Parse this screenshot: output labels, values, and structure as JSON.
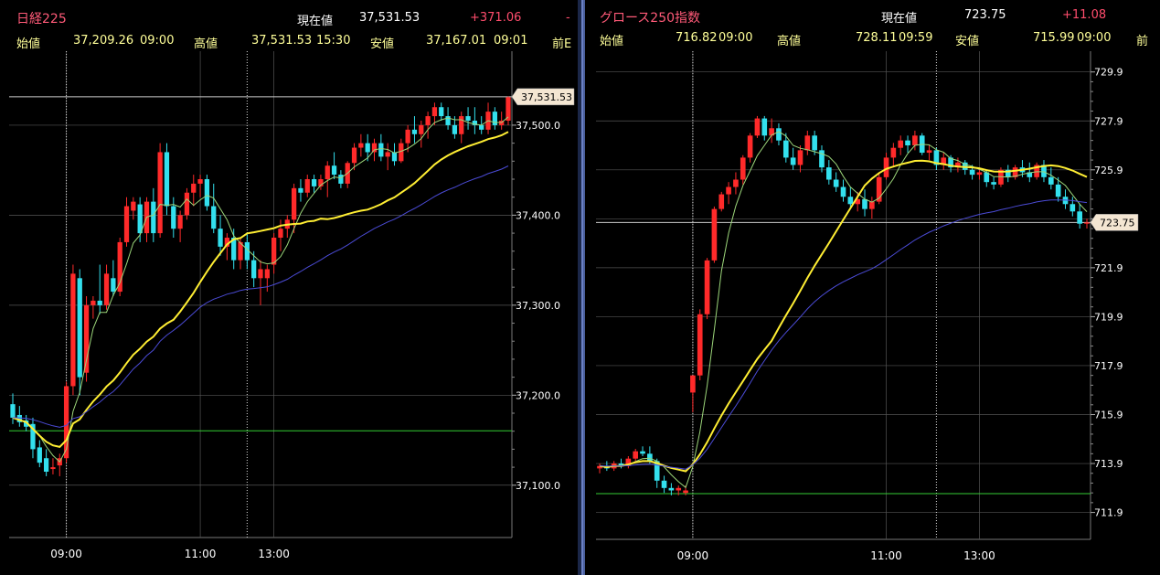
{
  "panels": [
    {
      "id": "nikkei",
      "title": "日経225",
      "current_label": "現在値",
      "current_value": "37,531.53",
      "change": "+371.06",
      "change_marker": "-",
      "open_label": "始値",
      "open_value": "37,209.26",
      "open_time": "09:00",
      "high_label": "高値",
      "high_value": "37,531.53",
      "high_time": "15:30",
      "low_label": "安値",
      "low_value": "37,167.01",
      "low_time": "09:01",
      "prev_label": "前E",
      "price_tag": "37,531.53"
    },
    {
      "id": "growth250",
      "title": "グロース250指数",
      "current_label": "現在値",
      "current_value": "723.75",
      "change": "+11.08",
      "open_label": "始値",
      "open_value": "716.82",
      "open_time": "09:00",
      "high_label": "高値",
      "high_value": "728.11",
      "high_time": "09:59",
      "low_label": "安値",
      "low_value": "715.99",
      "low_time": "09:00",
      "prev_label": "前",
      "price_tag": "723.75"
    }
  ],
  "colors": {
    "up": "#ff2a2a",
    "down": "#33e0ee",
    "ma_fast": "#9cd67a",
    "ma_mid": "#ffee33",
    "ma_slow": "#4b4bd6",
    "prev_close_line": "#33cc33",
    "grid": "#555555"
  },
  "chart_data": [
    {
      "type": "candlestick",
      "name": "日経225",
      "y_ticks": [
        "37,100.0",
        "37,200.0",
        "37,300.0",
        "37,400.0",
        "37,500.0"
      ],
      "y_tick_values": [
        37100,
        37200,
        37300,
        37400,
        37500
      ],
      "ylim": [
        37050,
        37570
      ],
      "x_ticks": [
        "09:00",
        "11:00",
        "13:00"
      ],
      "x_tick_index": [
        8,
        28,
        39
      ],
      "session_markers": [
        8,
        35
      ],
      "prev_close": 37160.5,
      "last_price": 37531.53,
      "candles": [
        [
          37190,
          37202,
          37168,
          37175
        ],
        [
          37178,
          37188,
          37165,
          37170
        ],
        [
          37172,
          37178,
          37160,
          37165
        ],
        [
          37168,
          37175,
          37130,
          37140
        ],
        [
          37142,
          37150,
          37120,
          37125
        ],
        [
          37130,
          37140,
          37110,
          37115
        ],
        [
          37118,
          37130,
          37112,
          37120
        ],
        [
          37122,
          37135,
          37110,
          37130
        ],
        [
          37130,
          37215,
          37125,
          37210
        ],
        [
          37210,
          37345,
          37200,
          37335
        ],
        [
          37330,
          37340,
          37200,
          37220
        ],
        [
          37225,
          37310,
          37215,
          37300
        ],
        [
          37300,
          37310,
          37285,
          37305
        ],
        [
          37305,
          37345,
          37290,
          37300
        ],
        [
          37300,
          37345,
          37295,
          37335
        ],
        [
          37330,
          37350,
          37310,
          37315
        ],
        [
          37315,
          37375,
          37310,
          37370
        ],
        [
          37370,
          37420,
          37365,
          37410
        ],
        [
          37405,
          37420,
          37395,
          37415
        ],
        [
          37412,
          37420,
          37370,
          37380
        ],
        [
          37380,
          37420,
          37370,
          37415
        ],
        [
          37415,
          37430,
          37370,
          37380
        ],
        [
          37380,
          37480,
          37375,
          37470
        ],
        [
          37470,
          37480,
          37400,
          37410
        ],
        [
          37410,
          37420,
          37375,
          37385
        ],
        [
          37385,
          37405,
          37370,
          37400
        ],
        [
          37400,
          37430,
          37395,
          37425
        ],
        [
          37425,
          37445,
          37410,
          37435
        ],
        [
          37435,
          37445,
          37420,
          37440
        ],
        [
          37440,
          37445,
          37405,
          37410
        ],
        [
          37410,
          37435,
          37380,
          37385
        ],
        [
          37385,
          37400,
          37355,
          37365
        ],
        [
          37365,
          37380,
          37350,
          37375
        ],
        [
          37375,
          37385,
          37340,
          37350
        ],
        [
          37350,
          37375,
          37340,
          37370
        ],
        [
          37370,
          37380,
          37340,
          37350
        ],
        [
          37350,
          37360,
          37320,
          37330
        ],
        [
          37330,
          37350,
          37300,
          37340
        ],
        [
          37330,
          37345,
          37315,
          37340
        ],
        [
          37345,
          37380,
          37335,
          37375
        ],
        [
          37375,
          37395,
          37360,
          37385
        ],
        [
          37385,
          37400,
          37375,
          37395
        ],
        [
          37395,
          37435,
          37380,
          37430
        ],
        [
          37430,
          37440,
          37415,
          37425
        ],
        [
          37425,
          37445,
          37420,
          37440
        ],
        [
          37440,
          37445,
          37425,
          37432
        ],
        [
          37432,
          37445,
          37428,
          37440
        ],
        [
          37440,
          37460,
          37420,
          37455
        ],
        [
          37455,
          37470,
          37440,
          37445
        ],
        [
          37445,
          37450,
          37430,
          37435
        ],
        [
          37435,
          37460,
          37430,
          37458
        ],
        [
          37458,
          37480,
          37450,
          37475
        ],
        [
          37475,
          37490,
          37465,
          37480
        ],
        [
          37480,
          37490,
          37460,
          37470
        ],
        [
          37470,
          37485,
          37460,
          37480
        ],
        [
          37480,
          37490,
          37460,
          37465
        ],
        [
          37465,
          37480,
          37450,
          37470
        ],
        [
          37470,
          37480,
          37455,
          37460
        ],
        [
          37460,
          37485,
          37458,
          37480
        ],
        [
          37480,
          37500,
          37470,
          37495
        ],
        [
          37495,
          37510,
          37480,
          37490
        ],
        [
          37490,
          37505,
          37475,
          37500
        ],
        [
          37500,
          37515,
          37485,
          37510
        ],
        [
          37510,
          37525,
          37500,
          37520
        ],
        [
          37520,
          37525,
          37505,
          37510
        ],
        [
          37510,
          37520,
          37495,
          37500
        ],
        [
          37500,
          37510,
          37485,
          37490
        ],
        [
          37490,
          37515,
          37480,
          37510
        ],
        [
          37510,
          37520,
          37495,
          37505
        ],
        [
          37505,
          37520,
          37490,
          37500
        ],
        [
          37500,
          37510,
          37490,
          37495
        ],
        [
          37495,
          37525,
          37490,
          37515
        ],
        [
          37515,
          37520,
          37495,
          37500
        ],
        [
          37500,
          37515,
          37495,
          37505
        ],
        [
          37505,
          37532,
          37500,
          37531
        ]
      ]
    },
    {
      "type": "candlestick",
      "name": "グロース250指数",
      "y_ticks": [
        "711.9",
        "713.9",
        "715.9",
        "717.9",
        "719.9",
        "721.9",
        "723.9",
        "725.9",
        "727.9",
        "729.9"
      ],
      "y_tick_values": [
        711.9,
        713.9,
        715.9,
        717.9,
        719.9,
        721.9,
        723.9,
        725.9,
        727.9,
        729.9
      ],
      "ylim": [
        711.1,
        730.3
      ],
      "x_ticks": [
        "09:00",
        "11:00",
        "13:00"
      ],
      "x_tick_index": [
        13,
        40,
        53
      ],
      "session_markers": [
        13,
        47
      ],
      "prev_close": 712.67,
      "last_price": 723.75,
      "candles": [
        [
          713.7,
          713.9,
          713.5,
          713.8
        ],
        [
          713.8,
          714.0,
          713.6,
          713.7
        ],
        [
          713.7,
          714.0,
          713.6,
          713.9
        ],
        [
          713.9,
          714.1,
          713.7,
          713.8
        ],
        [
          713.8,
          714.2,
          713.7,
          714.1
        ],
        [
          714.1,
          714.5,
          714.0,
          714.4
        ],
        [
          714.4,
          714.6,
          714.2,
          714.3
        ],
        [
          714.3,
          714.6,
          713.9,
          714.0
        ],
        [
          714.0,
          714.1,
          712.9,
          713.2
        ],
        [
          713.2,
          713.4,
          712.7,
          712.9
        ],
        [
          712.9,
          713.1,
          712.6,
          712.8
        ],
        [
          712.8,
          713.0,
          712.6,
          712.9
        ],
        [
          712.7,
          713.0,
          712.6,
          712.8
        ],
        [
          716.8,
          717.5,
          716.0,
          717.5
        ],
        [
          717.5,
          720.2,
          717.3,
          720.0
        ],
        [
          720.0,
          722.3,
          719.8,
          722.2
        ],
        [
          722.2,
          724.4,
          722.1,
          724.3
        ],
        [
          724.3,
          725.0,
          724.2,
          724.9
        ],
        [
          724.9,
          725.4,
          724.5,
          725.2
        ],
        [
          725.2,
          725.8,
          724.9,
          725.5
        ],
        [
          725.5,
          726.5,
          725.3,
          726.4
        ],
        [
          726.4,
          727.4,
          726.2,
          727.3
        ],
        [
          727.3,
          728.1,
          727.2,
          728.0
        ],
        [
          728.0,
          728.1,
          727.1,
          727.3
        ],
        [
          727.3,
          728.0,
          727.0,
          727.6
        ],
        [
          727.6,
          727.8,
          726.9,
          727.1
        ],
        [
          727.1,
          727.4,
          726.2,
          726.4
        ],
        [
          726.4,
          726.8,
          725.9,
          726.1
        ],
        [
          726.1,
          726.9,
          725.8,
          726.7
        ],
        [
          726.7,
          727.5,
          726.5,
          727.3
        ],
        [
          727.3,
          727.5,
          726.5,
          726.7
        ],
        [
          726.7,
          726.9,
          725.8,
          726.0
        ],
        [
          726.0,
          726.3,
          725.3,
          725.5
        ],
        [
          725.5,
          725.8,
          725.0,
          725.2
        ],
        [
          725.2,
          725.5,
          724.6,
          724.8
        ],
        [
          724.8,
          725.2,
          724.3,
          724.5
        ],
        [
          724.5,
          725.0,
          724.2,
          724.7
        ],
        [
          724.7,
          725.1,
          724.0,
          724.3
        ],
        [
          724.3,
          724.8,
          723.9,
          724.6
        ],
        [
          724.6,
          725.8,
          724.5,
          725.6
        ],
        [
          725.6,
          726.6,
          725.5,
          726.4
        ],
        [
          726.4,
          727.0,
          726.0,
          726.8
        ],
        [
          726.8,
          727.3,
          726.5,
          727.1
        ],
        [
          727.1,
          727.3,
          726.6,
          726.9
        ],
        [
          726.9,
          727.5,
          726.7,
          727.3
        ],
        [
          727.3,
          727.4,
          726.5,
          726.6
        ],
        [
          726.6,
          726.9,
          726.3,
          726.7
        ],
        [
          726.7,
          726.8,
          725.9,
          726.1
        ],
        [
          726.1,
          726.6,
          725.9,
          726.4
        ],
        [
          726.4,
          726.5,
          725.8,
          726.0
        ],
        [
          726.0,
          726.4,
          725.8,
          726.2
        ],
        [
          726.2,
          726.3,
          725.7,
          725.9
        ],
        [
          725.9,
          726.1,
          725.5,
          725.7
        ],
        [
          725.7,
          726.0,
          725.5,
          725.8
        ],
        [
          725.8,
          725.9,
          725.2,
          725.4
        ],
        [
          725.4,
          725.6,
          725.1,
          725.3
        ],
        [
          725.3,
          726.0,
          725.2,
          725.9
        ],
        [
          725.9,
          726.1,
          725.4,
          725.6
        ],
        [
          725.6,
          726.1,
          725.5,
          726.0
        ],
        [
          726.0,
          726.3,
          725.6,
          725.8
        ],
        [
          725.8,
          726.2,
          725.4,
          725.6
        ],
        [
          725.6,
          726.2,
          725.5,
          726.1
        ],
        [
          726.1,
          726.3,
          725.4,
          725.6
        ],
        [
          725.6,
          726.0,
          725.1,
          725.3
        ],
        [
          725.3,
          725.6,
          724.6,
          724.8
        ],
        [
          724.8,
          725.1,
          724.3,
          724.5
        ],
        [
          724.5,
          724.8,
          724.0,
          724.2
        ],
        [
          724.2,
          724.5,
          723.5,
          723.7
        ],
        [
          723.7,
          723.9,
          723.5,
          723.75
        ]
      ]
    }
  ]
}
